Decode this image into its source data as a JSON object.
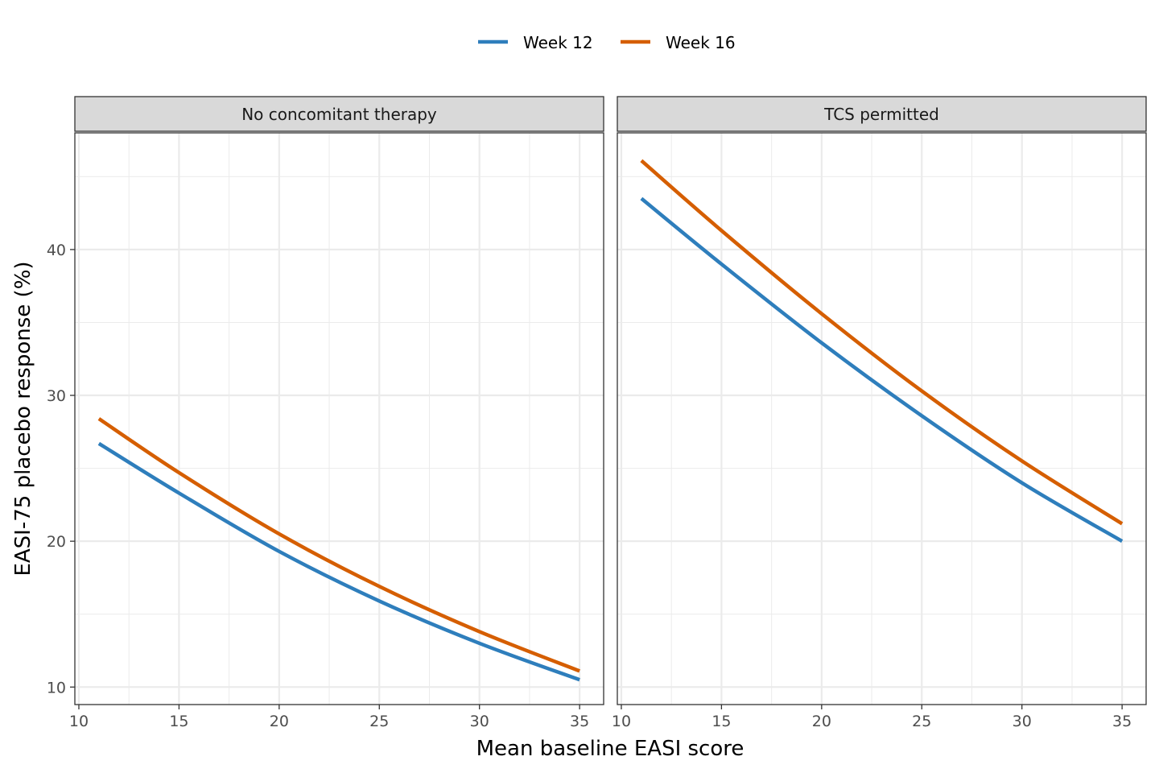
{
  "chart_data": {
    "type": "line",
    "xlabel": "Mean baseline EASI score",
    "ylabel": "EASI-75 placebo response (%)",
    "xlim": [
      9.8,
      36.2
    ],
    "ylim": [
      8.8,
      48.0
    ],
    "x_ticks": [
      10,
      15,
      20,
      25,
      30,
      35
    ],
    "x_tick_labels": [
      "10",
      "15",
      "20",
      "25",
      "30",
      "35"
    ],
    "y_ticks": [
      10,
      20,
      30,
      40
    ],
    "y_tick_labels": [
      "10",
      "20",
      "30",
      "40"
    ],
    "grid": true,
    "legend": {
      "position": "top",
      "entries": [
        {
          "label": "Week 12",
          "color": "#2e7ebc"
        },
        {
          "label": "Week 16",
          "color": "#d55e00"
        }
      ]
    },
    "panels": [
      {
        "strip": "No concomitant therapy",
        "series": [
          {
            "name": "Week 12",
            "color": "#2e7ebc",
            "x": [
              11,
              15,
              20,
              25,
              30,
              35
            ],
            "y": [
              26.7,
              23.3,
              19.3,
              15.9,
              13.0,
              10.5
            ]
          },
          {
            "name": "Week 16",
            "color": "#d55e00",
            "x": [
              11,
              15,
              20,
              25,
              30,
              35
            ],
            "y": [
              28.4,
              24.7,
              20.5,
              16.9,
              13.8,
              11.1
            ]
          }
        ]
      },
      {
        "strip": "TCS permitted",
        "series": [
          {
            "name": "Week 12",
            "color": "#2e7ebc",
            "x": [
              11,
              15,
              20,
              25,
              30,
              35
            ],
            "y": [
              43.5,
              39.0,
              33.6,
              28.6,
              24.0,
              20.0
            ]
          },
          {
            "name": "Week 16",
            "color": "#d55e00",
            "x": [
              11,
              15,
              20,
              25,
              30,
              35
            ],
            "y": [
              46.1,
              41.3,
              35.6,
              30.3,
              25.5,
              21.2
            ]
          }
        ]
      }
    ]
  }
}
